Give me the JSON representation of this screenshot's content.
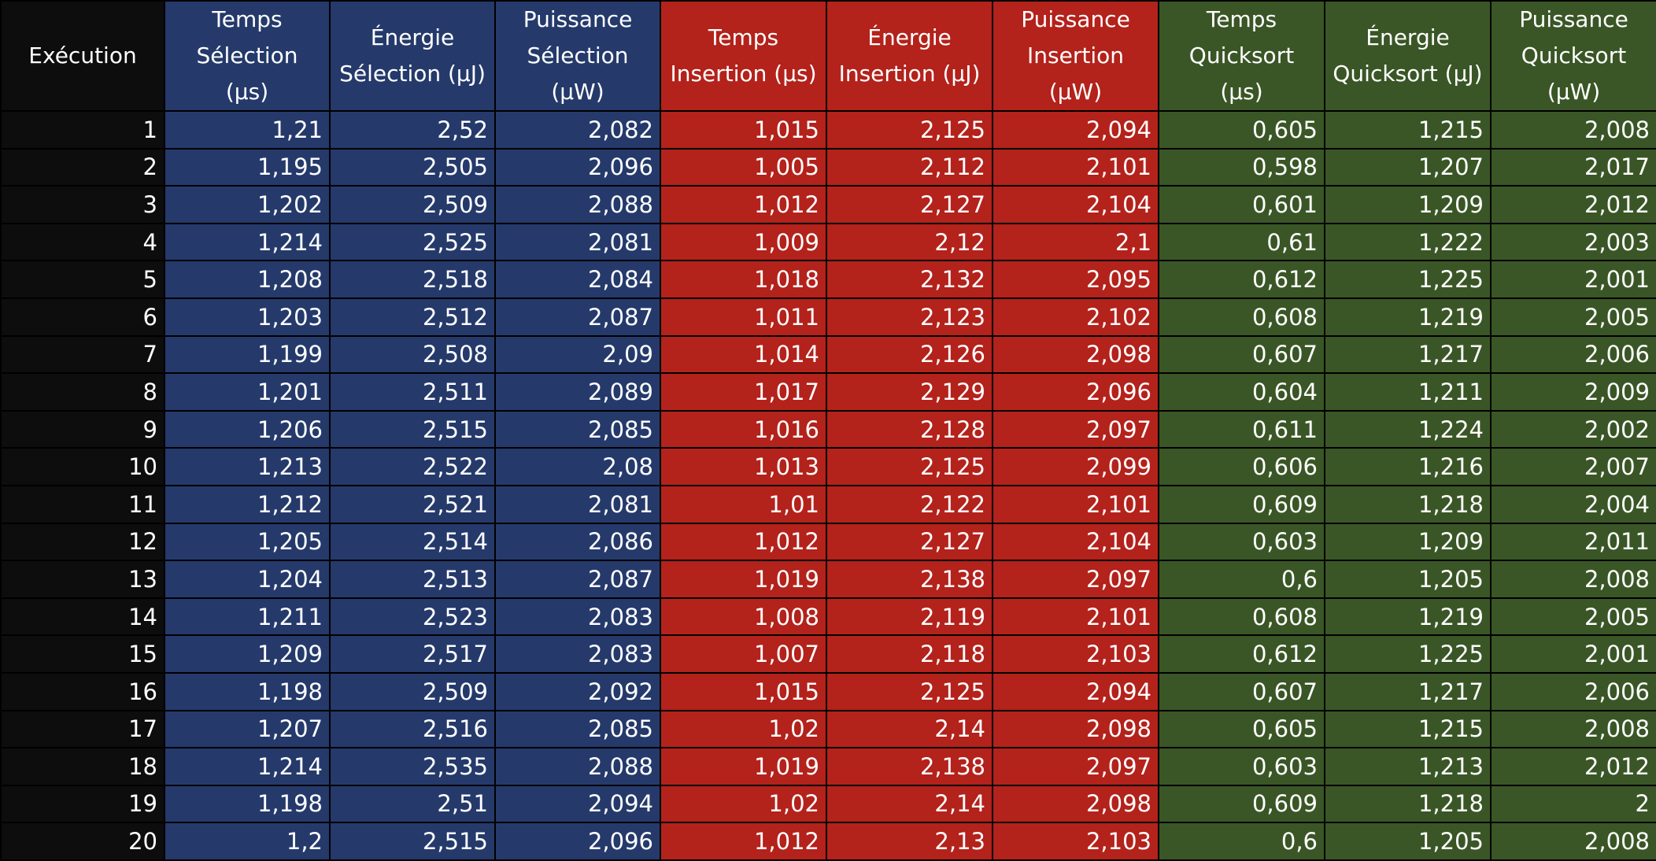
{
  "headers": {
    "execution": "Exécution",
    "sel_time": [
      "Temps",
      "Sélection (µs)"
    ],
    "sel_energy": [
      "Énergie",
      "Sélection (µJ)"
    ],
    "sel_power": [
      "Puissance",
      "Sélection",
      "(µW)"
    ],
    "ins_time": [
      "Temps",
      "Insertion (µs)"
    ],
    "ins_energy": [
      "Énergie",
      "Insertion (µJ)"
    ],
    "ins_power": [
      "Puissance",
      "Insertion",
      "(µW)"
    ],
    "qs_time": [
      "Temps",
      "Quicksort (µs)"
    ],
    "qs_energy": [
      "Énergie",
      "Quicksort (µJ)"
    ],
    "qs_power": [
      "Puissance",
      "Quicksort",
      "(µW)"
    ]
  },
  "colors": {
    "selection": "#253a6b",
    "insertion": "#b3221b",
    "quicksort": "#3a5626",
    "execution": "#0d0d0d"
  },
  "rows": [
    [
      "1",
      "1,21",
      "2,52",
      "2,082",
      "1,015",
      "2,125",
      "2,094",
      "0,605",
      "1,215",
      "2,008"
    ],
    [
      "2",
      "1,195",
      "2,505",
      "2,096",
      "1,005",
      "2,112",
      "2,101",
      "0,598",
      "1,207",
      "2,017"
    ],
    [
      "3",
      "1,202",
      "2,509",
      "2,088",
      "1,012",
      "2,127",
      "2,104",
      "0,601",
      "1,209",
      "2,012"
    ],
    [
      "4",
      "1,214",
      "2,525",
      "2,081",
      "1,009",
      "2,12",
      "2,1",
      "0,61",
      "1,222",
      "2,003"
    ],
    [
      "5",
      "1,208",
      "2,518",
      "2,084",
      "1,018",
      "2,132",
      "2,095",
      "0,612",
      "1,225",
      "2,001"
    ],
    [
      "6",
      "1,203",
      "2,512",
      "2,087",
      "1,011",
      "2,123",
      "2,102",
      "0,608",
      "1,219",
      "2,005"
    ],
    [
      "7",
      "1,199",
      "2,508",
      "2,09",
      "1,014",
      "2,126",
      "2,098",
      "0,607",
      "1,217",
      "2,006"
    ],
    [
      "8",
      "1,201",
      "2,511",
      "2,089",
      "1,017",
      "2,129",
      "2,096",
      "0,604",
      "1,211",
      "2,009"
    ],
    [
      "9",
      "1,206",
      "2,515",
      "2,085",
      "1,016",
      "2,128",
      "2,097",
      "0,611",
      "1,224",
      "2,002"
    ],
    [
      "10",
      "1,213",
      "2,522",
      "2,08",
      "1,013",
      "2,125",
      "2,099",
      "0,606",
      "1,216",
      "2,007"
    ],
    [
      "11",
      "1,212",
      "2,521",
      "2,081",
      "1,01",
      "2,122",
      "2,101",
      "0,609",
      "1,218",
      "2,004"
    ],
    [
      "12",
      "1,205",
      "2,514",
      "2,086",
      "1,012",
      "2,127",
      "2,104",
      "0,603",
      "1,209",
      "2,011"
    ],
    [
      "13",
      "1,204",
      "2,513",
      "2,087",
      "1,019",
      "2,138",
      "2,097",
      "0,6",
      "1,205",
      "2,008"
    ],
    [
      "14",
      "1,211",
      "2,523",
      "2,083",
      "1,008",
      "2,119",
      "2,101",
      "0,608",
      "1,219",
      "2,005"
    ],
    [
      "15",
      "1,209",
      "2,517",
      "2,083",
      "1,007",
      "2,118",
      "2,103",
      "0,612",
      "1,225",
      "2,001"
    ],
    [
      "16",
      "1,198",
      "2,509",
      "2,092",
      "1,015",
      "2,125",
      "2,094",
      "0,607",
      "1,217",
      "2,006"
    ],
    [
      "17",
      "1,207",
      "2,516",
      "2,085",
      "1,02",
      "2,14",
      "2,098",
      "0,605",
      "1,215",
      "2,008"
    ],
    [
      "18",
      "1,214",
      "2,535",
      "2,088",
      "1,019",
      "2,138",
      "2,097",
      "0,603",
      "1,213",
      "2,012"
    ],
    [
      "19",
      "1,198",
      "2,51",
      "2,094",
      "1,02",
      "2,14",
      "2,098",
      "0,609",
      "1,218",
      "2"
    ],
    [
      "20",
      "1,2",
      "2,515",
      "2,096",
      "1,012",
      "2,13",
      "2,103",
      "0,6",
      "1,205",
      "2,008"
    ]
  ]
}
